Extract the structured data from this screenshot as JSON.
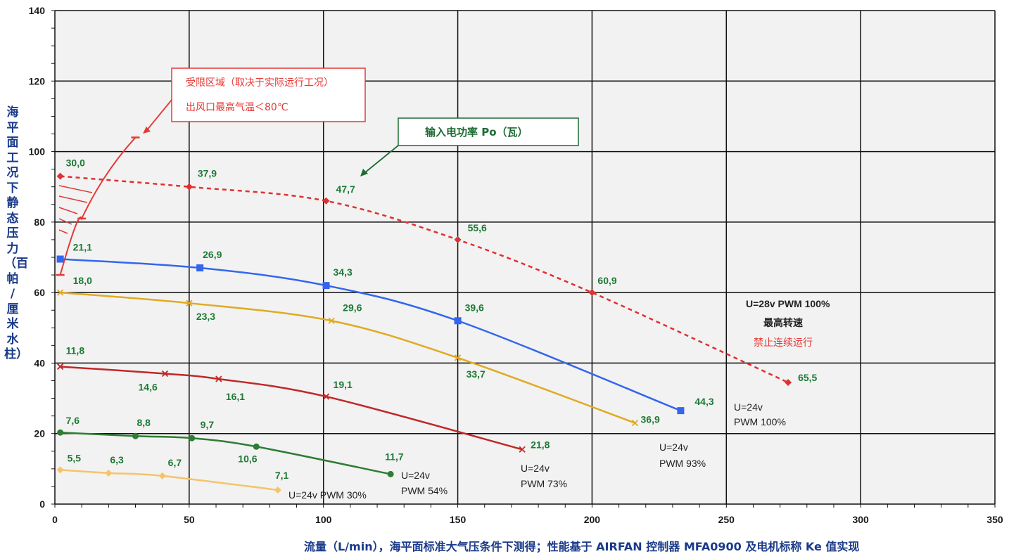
{
  "chart_data": {
    "type": "line",
    "xlabel": "流量（L/min），海平面标准大气压条件下测得；性能基于 AIRFAN 控制器 MFA0900 及电机标称 Ke 值实现",
    "ylabel": "海平面工况下静态压力（百帕 / 厘米水柱）",
    "xlim": [
      0,
      350
    ],
    "ylim": [
      0,
      140
    ],
    "x_ticks": [
      "0",
      "50",
      "100",
      "150",
      "200",
      "250",
      "300",
      "350"
    ],
    "y_ticks": [
      "0",
      "20",
      "40",
      "60",
      "80",
      "100",
      "120",
      "140"
    ],
    "grid": true,
    "series": [
      {
        "name": "U=28v PWM 100%",
        "color": "#e03030",
        "dashed": true,
        "marker": "diamond",
        "points": [
          [
            2,
            93
          ],
          [
            50,
            90
          ],
          [
            101,
            86
          ],
          [
            150,
            75
          ],
          [
            200,
            60
          ],
          [
            273,
            34.5
          ]
        ],
        "labels": [
          "30,0",
          "37,9",
          "47,7",
          "55,6",
          "60,9",
          "65,5"
        ]
      },
      {
        "name": "U=24v PWM 100%",
        "color": "#3366ee",
        "dashed": false,
        "marker": "square",
        "points": [
          [
            2,
            69.5
          ],
          [
            54,
            67
          ],
          [
            101,
            62
          ],
          [
            150,
            52
          ],
          [
            233,
            26.5
          ]
        ],
        "labels": [
          "21,1",
          "26,9",
          "34,3",
          "39,6",
          "44,3"
        ]
      },
      {
        "name": "U=24v PWM 93%",
        "color": "#e0aa22",
        "dashed": false,
        "marker": "x",
        "points": [
          [
            2,
            60
          ],
          [
            50,
            57
          ],
          [
            103,
            52
          ],
          [
            150,
            41.5
          ],
          [
            216,
            23
          ]
        ],
        "labels": [
          "18,0",
          "23,3",
          "29,6",
          "33,7",
          "36,9"
        ]
      },
      {
        "name": "U=24v PWM 73%",
        "color": "#c02828",
        "dashed": false,
        "marker": "x",
        "points": [
          [
            2,
            39
          ],
          [
            41,
            37
          ],
          [
            61,
            35.5
          ],
          [
            101,
            30.5
          ],
          [
            174,
            15.5
          ]
        ],
        "labels": [
          "11,8",
          "14,6",
          "16,1",
          "19,1",
          "21,8"
        ]
      },
      {
        "name": "U=24v PWM 54%",
        "color": "#2e7d32",
        "dashed": false,
        "marker": "circle",
        "points": [
          [
            2,
            20.3
          ],
          [
            30,
            19.3
          ],
          [
            51,
            18.7
          ],
          [
            75,
            16.3
          ],
          [
            125,
            8.5
          ]
        ],
        "labels": [
          "7,6",
          "8,8",
          "9,7",
          "10,6",
          "11,7"
        ]
      },
      {
        "name": "U=24v PWM 30%",
        "color": "#f5c36b",
        "dashed": false,
        "marker": "diamond",
        "points": [
          [
            2,
            9.7
          ],
          [
            20,
            8.8
          ],
          [
            40,
            8
          ],
          [
            83,
            4
          ]
        ],
        "labels": [
          "5,5",
          "6,3",
          "6,7",
          "7,1"
        ]
      }
    ],
    "series_labels": {
      "pwm100_28v": "U=28v  PWM 100%",
      "max_speed": "最高转速",
      "no_continuous": "禁止连续运行",
      "pwm100_line1": "U=24v",
      "pwm100_line2": "PWM 100%",
      "pwm93_line1": "U=24v",
      "pwm93_line2": "PWM 93%",
      "pwm73_line1": "U=24v",
      "pwm73_line2": "PWM 73%",
      "pwm54_line1": "U=24v",
      "pwm54_line2": "PWM 54%",
      "pwm30": "U=24v PWM 30%"
    },
    "annotations": {
      "restricted_line1": "受限区域（取决于实际运行工况）",
      "restricted_line2": "出风口最高气温＜80℃",
      "power_label": "输入电功率 Po（瓦）"
    },
    "restricted_boundary": [
      [
        2,
        65
      ],
      [
        10,
        81
      ],
      [
        30,
        104
      ]
    ]
  },
  "colors": {
    "restricted": "#e53935",
    "power_box": "#1e6b35",
    "axis_label": "#1a3a8a",
    "point_label": "#1e7a35"
  }
}
